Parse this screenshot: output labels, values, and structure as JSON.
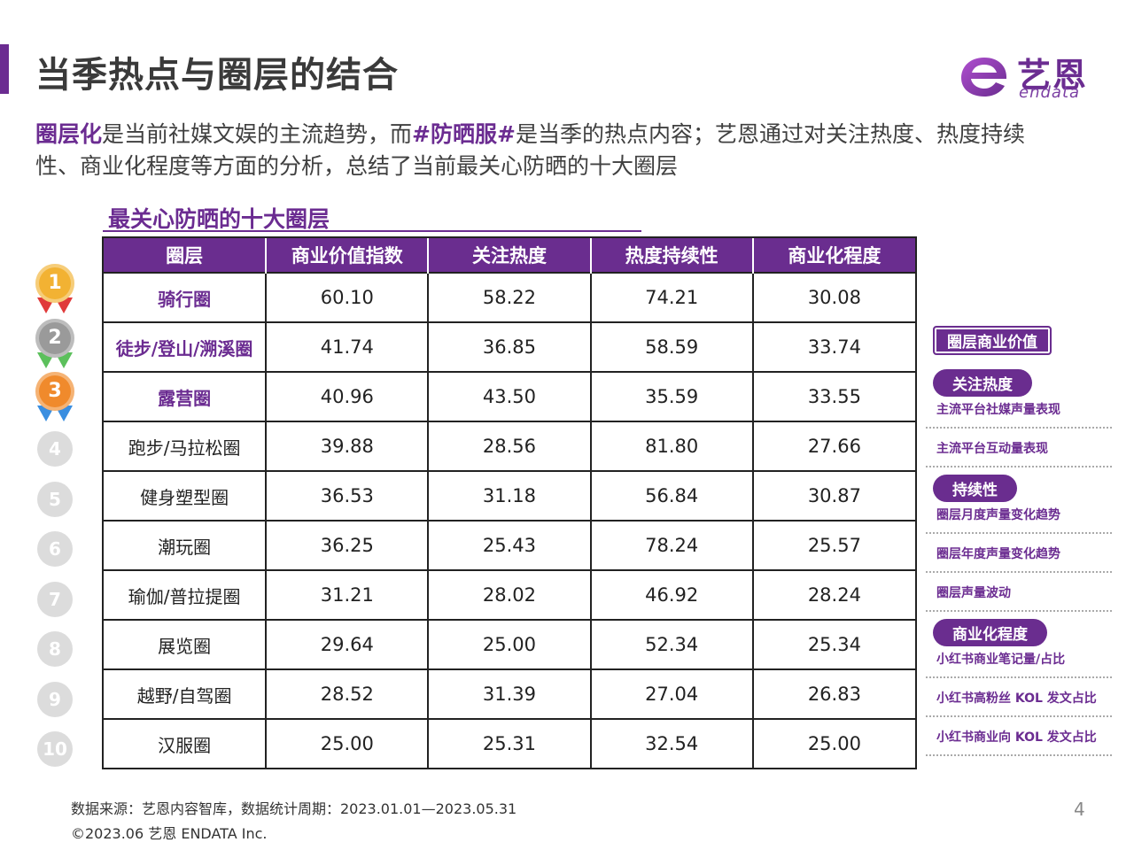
{
  "header": {
    "title": "当季热点与圈层的结合",
    "brand_cn": "艺恩",
    "brand_en": "endata"
  },
  "intro": {
    "hl1": "圈层化",
    "t1": "是当前社媒文娱的主流趋势，而",
    "hl2": "#防晒服#",
    "t2": "是当季的热点内容；艺恩通过对关注热度、热度持续性、商业化程度等方面的分析，总结了当前最关心防晒的十大圈层"
  },
  "table": {
    "title": "最关心防晒的十大圈层",
    "columns": [
      "圈层",
      "商业价值指数",
      "关注热度",
      "热度持续性",
      "商业化程度"
    ],
    "rows": [
      {
        "rank": "1",
        "name": "骑行圈",
        "v": [
          "60.10",
          "58.22",
          "74.21",
          "30.08"
        ]
      },
      {
        "rank": "2",
        "name": "徒步/登山/溯溪圈",
        "v": [
          "41.74",
          "36.85",
          "58.59",
          "33.74"
        ]
      },
      {
        "rank": "3",
        "name": "露营圈",
        "v": [
          "40.96",
          "43.50",
          "35.59",
          "33.55"
        ]
      },
      {
        "rank": "4",
        "name": "跑步/马拉松圈",
        "v": [
          "39.88",
          "28.56",
          "81.80",
          "27.66"
        ]
      },
      {
        "rank": "5",
        "name": "健身塑型圈",
        "v": [
          "36.53",
          "31.18",
          "56.84",
          "30.87"
        ]
      },
      {
        "rank": "6",
        "name": "潮玩圈",
        "v": [
          "36.25",
          "25.43",
          "78.24",
          "25.57"
        ]
      },
      {
        "rank": "7",
        "name": "瑜伽/普拉提圈",
        "v": [
          "31.21",
          "28.02",
          "46.92",
          "28.24"
        ]
      },
      {
        "rank": "8",
        "name": "展览圈",
        "v": [
          "29.64",
          "25.00",
          "52.34",
          "25.34"
        ]
      },
      {
        "rank": "9",
        "name": "越野/自驾圈",
        "v": [
          "28.52",
          "31.39",
          "27.04",
          "26.83"
        ]
      },
      {
        "rank": "10",
        "name": "汉服圈",
        "v": [
          "25.00",
          "25.31",
          "32.54",
          "25.00"
        ]
      }
    ]
  },
  "legend": {
    "value_label": "圈层商业价值",
    "heat_label": "关注热度",
    "heat_items": [
      "主流平台社媒声量表现",
      "主流平台互动量表现"
    ],
    "sustain_label": "持续性",
    "sustain_items": [
      "圈层月度声量变化趋势",
      "圈层年度声量变化趋势",
      "圈层声量波动"
    ],
    "comm_label": "商业化程度",
    "comm_items": [
      "小红书商业笔记量/占比",
      "小红书高粉丝 KOL 发文占比",
      "小红书商业向 KOL 发文占比"
    ]
  },
  "footer": {
    "source": "数据来源：艺恩内容智库，数据统计周期：2023.01.01—2023.05.31",
    "copyright": "©2023.06 艺恩 ENDATA Inc.",
    "page": "4"
  },
  "colors": {
    "accent": "#6b2c91",
    "header_bg": "#6a2d8f",
    "gold": "#f2b233",
    "silver": "#9a9a9a",
    "bronze": "#f08a2c"
  }
}
